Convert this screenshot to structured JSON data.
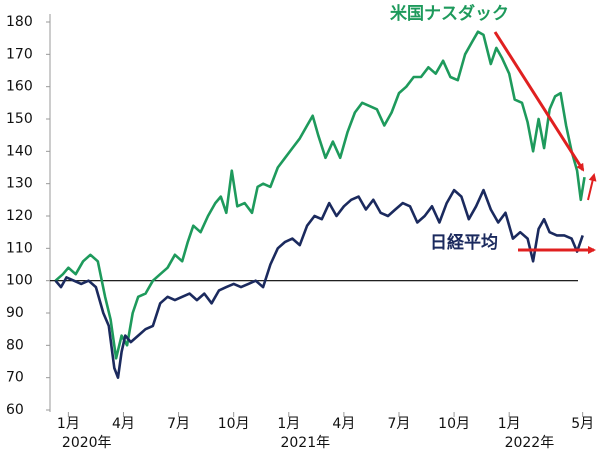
{
  "chart_data": {
    "type": "line",
    "xlim": [
      -1,
      28.4
    ],
    "ylim": [
      60,
      180
    ],
    "yticks": [
      60,
      70,
      80,
      90,
      100,
      110,
      120,
      130,
      140,
      150,
      160,
      170,
      180
    ],
    "xticks": [
      {
        "value": 0,
        "label": "1月"
      },
      {
        "value": 3,
        "label": "4月"
      },
      {
        "value": 6,
        "label": "7月"
      },
      {
        "value": 9,
        "label": "10月"
      },
      {
        "value": 12,
        "label": "1月"
      },
      {
        "value": 15,
        "label": "4月"
      },
      {
        "value": 18,
        "label": "7月"
      },
      {
        "value": 21,
        "label": "10月"
      },
      {
        "value": 24,
        "label": "1月"
      },
      {
        "value": 28,
        "label": "5月"
      }
    ],
    "year_labels": [
      {
        "value": 1,
        "label": "2020年"
      },
      {
        "value": 12.9,
        "label": "2021年"
      },
      {
        "value": 25.1,
        "label": "2022年"
      }
    ],
    "reference_line": 100,
    "series": [
      {
        "name": "米国ナスダック",
        "color": "#1e9a5c",
        "x": [
          -0.7,
          -0.3,
          0,
          0.4,
          0.8,
          1.2,
          1.6,
          2.0,
          2.3,
          2.6,
          2.9,
          3.2,
          3.5,
          3.8,
          4.2,
          4.6,
          5.0,
          5.4,
          5.8,
          6.2,
          6.5,
          6.8,
          7.2,
          7.6,
          8.0,
          8.3,
          8.6,
          8.9,
          9.2,
          9.6,
          10.0,
          10.3,
          10.6,
          11.0,
          11.4,
          11.8,
          12.2,
          12.6,
          13.0,
          13.3,
          13.6,
          14.0,
          14.4,
          14.8,
          15.2,
          15.6,
          16.0,
          16.4,
          16.8,
          17.2,
          17.6,
          18.0,
          18.4,
          18.8,
          19.2,
          19.6,
          20.0,
          20.4,
          20.8,
          21.2,
          21.6,
          22.0,
          22.3,
          22.6,
          23.0,
          23.3,
          23.6,
          24.0,
          24.3,
          24.7,
          25.0,
          25.3,
          25.6,
          25.9,
          26.2,
          26.5,
          26.8,
          27.1,
          27.4,
          27.7,
          27.9,
          28.1
        ],
        "values": [
          100,
          102,
          104,
          102,
          106,
          108,
          106,
          95,
          88,
          76,
          83,
          80,
          90,
          95,
          96,
          100,
          102,
          104,
          108,
          106,
          112,
          117,
          115,
          120,
          124,
          126,
          121,
          134,
          123,
          124,
          121,
          129,
          130,
          129,
          135,
          138,
          141,
          144,
          148,
          151,
          145,
          138,
          143,
          138,
          146,
          152,
          155,
          154,
          153,
          148,
          152,
          158,
          160,
          163,
          163,
          166,
          164,
          168,
          163,
          162,
          170,
          174,
          177,
          176,
          167,
          172,
          169,
          164,
          156,
          155,
          149,
          140,
          150,
          141,
          153,
          157,
          158,
          148,
          140,
          134,
          125,
          132
        ]
      },
      {
        "name": "日経平均",
        "color": "#1b2a5e",
        "x": [
          -0.7,
          -0.4,
          -0.1,
          0.3,
          0.7,
          1.1,
          1.5,
          1.9,
          2.2,
          2.5,
          2.7,
          2.9,
          3.1,
          3.4,
          3.8,
          4.2,
          4.6,
          5.0,
          5.4,
          5.8,
          6.2,
          6.6,
          7.0,
          7.4,
          7.8,
          8.2,
          8.6,
          9.0,
          9.4,
          9.8,
          10.2,
          10.6,
          11.0,
          11.4,
          11.8,
          12.2,
          12.6,
          13.0,
          13.4,
          13.8,
          14.2,
          14.6,
          15.0,
          15.4,
          15.8,
          16.2,
          16.6,
          17.0,
          17.4,
          17.8,
          18.2,
          18.6,
          19.0,
          19.4,
          19.8,
          20.2,
          20.6,
          21.0,
          21.4,
          21.8,
          22.2,
          22.6,
          23.0,
          23.4,
          23.8,
          24.2,
          24.6,
          25.0,
          25.3,
          25.6,
          25.9,
          26.2,
          26.6,
          27.0,
          27.4,
          27.7,
          28.0
        ],
        "values": [
          100,
          98,
          101,
          100,
          99,
          100,
          98,
          90,
          86,
          73,
          70,
          78,
          83,
          81,
          83,
          85,
          86,
          93,
          95,
          94,
          95,
          96,
          94,
          96,
          93,
          97,
          98,
          99,
          98,
          99,
          100,
          98,
          105,
          110,
          112,
          113,
          111,
          117,
          120,
          119,
          124,
          120,
          123,
          125,
          126,
          122,
          125,
          121,
          120,
          122,
          124,
          123,
          118,
          120,
          123,
          118,
          124,
          128,
          126,
          119,
          123,
          128,
          122,
          118,
          121,
          113,
          115,
          113,
          106,
          116,
          119,
          115,
          114,
          114,
          113,
          109,
          114
        ]
      }
    ]
  }
}
